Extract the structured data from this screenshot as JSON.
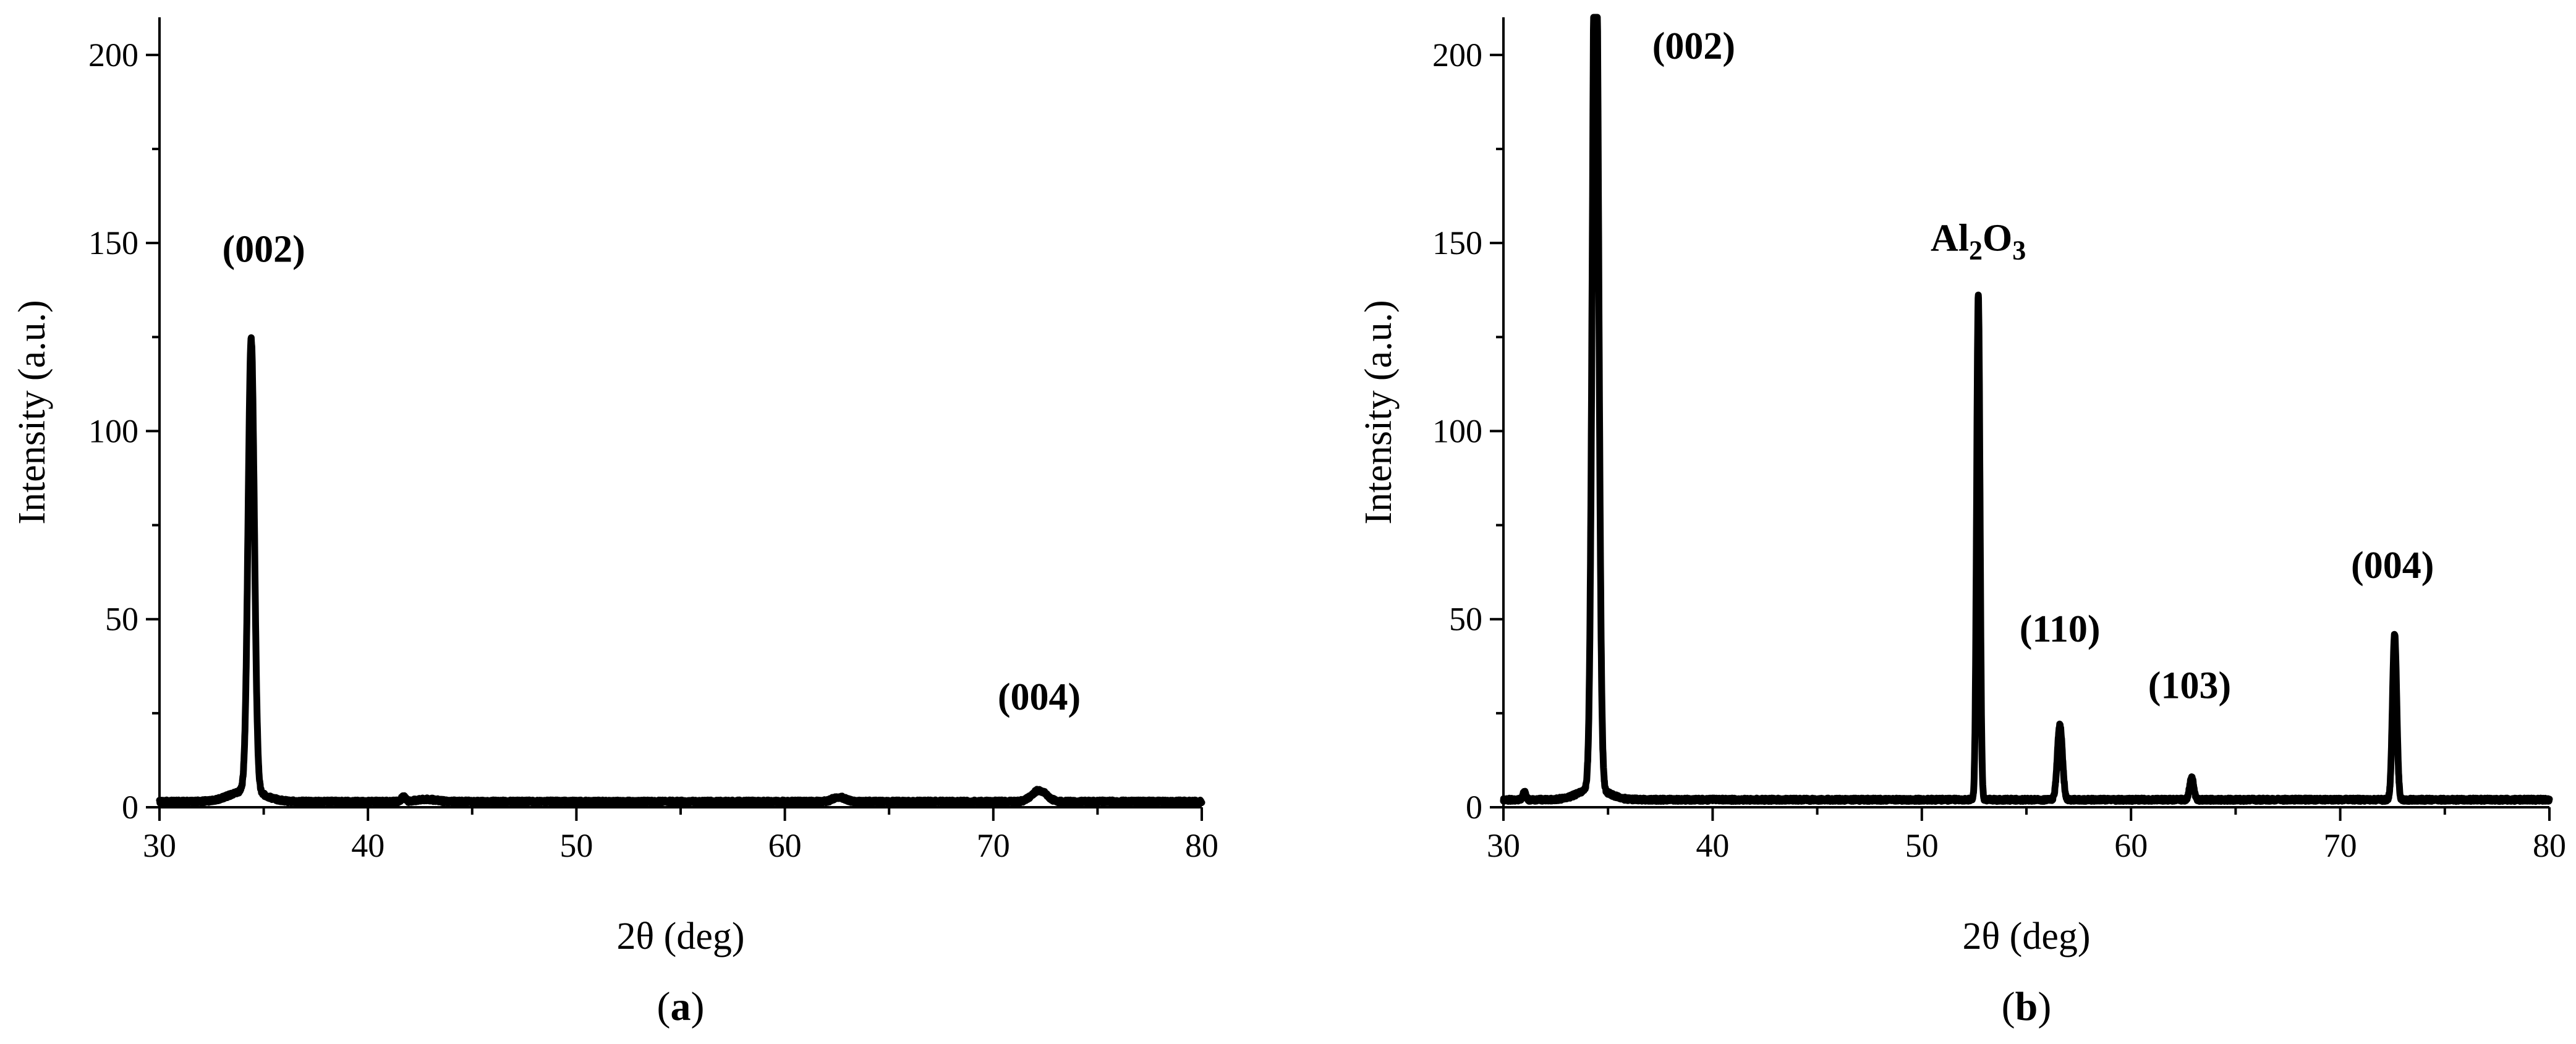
{
  "chart_data": [
    {
      "type": "line",
      "panel_label": {
        "open": "(",
        "letter": "a",
        "close": ")"
      },
      "xlabel": "2θ (deg)",
      "ylabel": "Intensity (a.u.)",
      "xlim": [
        30,
        80
      ],
      "ylim": [
        0,
        210
      ],
      "xticks": [
        30,
        40,
        50,
        60,
        70,
        80
      ],
      "yticks": [
        0,
        50,
        100,
        150,
        200
      ],
      "grid": false,
      "baseline": 1.5,
      "peaks": [
        {
          "x": 34.4,
          "y": 120,
          "width": 0.15
        },
        {
          "x": 34.2,
          "y": 3,
          "width": 0.8
        },
        {
          "x": 41.7,
          "y": 1.2,
          "width": 0.1
        },
        {
          "x": 42.8,
          "y": 0.6,
          "width": 0.5
        },
        {
          "x": 62.6,
          "y": 1.2,
          "width": 0.3
        },
        {
          "x": 72.2,
          "y": 3,
          "width": 0.35
        }
      ],
      "annotations": [
        {
          "text": "(002)",
          "x": 35.0,
          "y": 145
        },
        {
          "text": "(004)",
          "x": 72.2,
          "y": 26
        }
      ]
    },
    {
      "type": "line",
      "panel_label": {
        "open": "(",
        "letter": "b",
        "close": ")"
      },
      "xlabel": "2θ (deg)",
      "ylabel": "Intensity (a.u.)",
      "xlim": [
        30,
        80
      ],
      "ylim": [
        0,
        210
      ],
      "xticks": [
        30,
        40,
        50,
        60,
        70,
        80
      ],
      "yticks": [
        0,
        50,
        100,
        150,
        200
      ],
      "grid": false,
      "baseline": 2,
      "peaks": [
        {
          "x": 31.0,
          "y": 2,
          "width": 0.08
        },
        {
          "x": 34.4,
          "y": 260,
          "width": 0.14
        },
        {
          "x": 34.3,
          "y": 3,
          "width": 0.7
        },
        {
          "x": 52.7,
          "y": 134,
          "width": 0.08
        },
        {
          "x": 56.6,
          "y": 20,
          "width": 0.12
        },
        {
          "x": 62.9,
          "y": 6,
          "width": 0.1
        },
        {
          "x": 72.6,
          "y": 44,
          "width": 0.1
        }
      ],
      "annotations": [
        {
          "text": "(002)",
          "x": 39.1,
          "y": 199
        },
        {
          "text": "(110)",
          "x": 56.6,
          "y": 44
        },
        {
          "text": "(103)",
          "x": 62.8,
          "y": 29
        },
        {
          "text": "(004)",
          "x": 72.5,
          "y": 61
        }
      ],
      "special_label": {
        "text": "Al",
        "sub1": "2",
        "mid": "O",
        "sub2": "3",
        "x": 52.7,
        "y": 148
      }
    }
  ]
}
